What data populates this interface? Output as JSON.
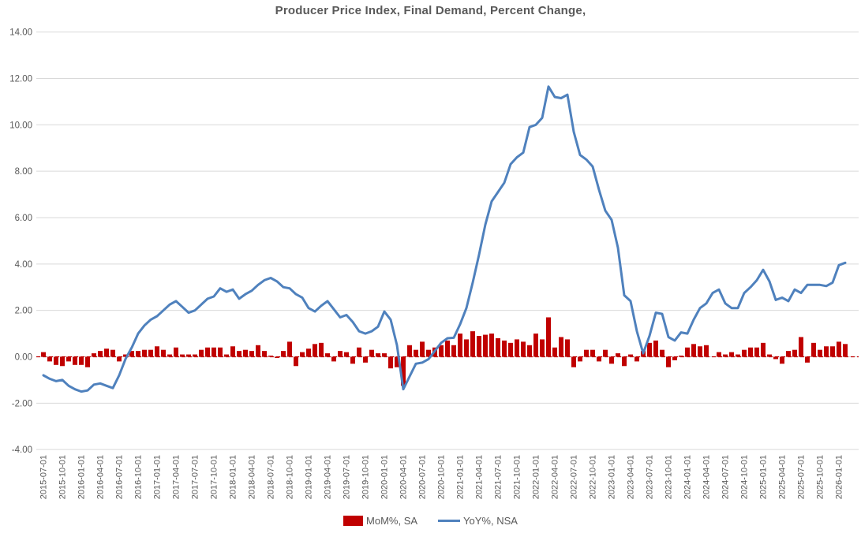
{
  "title": "Producer Price Index, Final Demand, Percent Change,",
  "legend": [
    {
      "label": "MoM%, SA",
      "color": "#C00000",
      "type": "bar"
    },
    {
      "label": "YoY%, NSA",
      "color": "#4F81BD",
      "type": "line"
    }
  ],
  "axes": {
    "y_tick_labels": [
      "14.00",
      "12.00",
      "10.00",
      "8.00",
      "6.00",
      "4.00",
      "2.00",
      "0.00",
      "-2.00",
      "-4.00"
    ],
    "y_min": -4,
    "y_max": 14,
    "grid": true,
    "x_tick_labels": [
      "2015-07-01",
      "2015-10-01",
      "2016-01-01",
      "2016-04-01",
      "2016-07-01",
      "2016-10-01",
      "2017-01-01",
      "2017-04-01",
      "2017-07-01",
      "2017-10-01",
      "2018-01-01",
      "2018-04-01",
      "2018-07-01",
      "2018-10-01",
      "2019-01-01",
      "2019-04-01",
      "2019-07-01",
      "2019-10-01",
      "2020-01-01",
      "2020-04-01",
      "2020-07-01",
      "2020-10-01",
      "2021-01-01",
      "2021-04-01",
      "2021-07-01",
      "2021-10-01",
      "2022-01-01",
      "2022-04-01",
      "2022-07-01",
      "2022-10-01",
      "2023-01-01",
      "2023-04-01",
      "2023-07-01",
      "2023-10-01",
      "2024-01-01",
      "2024-04-01",
      "2024-07-01",
      "2024-10-01",
      "2025-01-01",
      "2025-04-01",
      "2025-07-01",
      "2025-10-01",
      "2026-01-01"
    ]
  },
  "chart_data": {
    "type": "bar+line",
    "x_start": "2015-07",
    "x_freq": "monthly",
    "x_months_per_tick_label": 3,
    "zero_line": {
      "value": 0,
      "color": "#C00000",
      "style": "dashed"
    },
    "series": [
      {
        "name": "MoM%, SA",
        "type": "bar",
        "color": "#C00000",
        "values": [
          0.2,
          -0.2,
          -0.35,
          -0.4,
          -0.2,
          -0.35,
          -0.35,
          -0.45,
          0.15,
          0.25,
          0.35,
          0.3,
          -0.2,
          0.1,
          0.25,
          0.25,
          0.3,
          0.3,
          0.45,
          0.3,
          0.1,
          0.4,
          0.1,
          0.1,
          0.1,
          0.3,
          0.4,
          0.4,
          0.4,
          0.1,
          0.45,
          0.25,
          0.3,
          0.25,
          0.5,
          0.25,
          0.05,
          -0.05,
          0.25,
          0.65,
          -0.4,
          0.2,
          0.35,
          0.55,
          0.6,
          0.15,
          -0.2,
          0.25,
          0.2,
          -0.3,
          0.4,
          -0.25,
          0.3,
          0.15,
          0.15,
          -0.5,
          -0.45,
          -1.25,
          0.5,
          0.3,
          0.65,
          0.3,
          0.4,
          0.5,
          0.7,
          0.5,
          1.0,
          0.75,
          1.1,
          0.9,
          0.95,
          1.0,
          0.8,
          0.7,
          0.6,
          0.75,
          0.65,
          0.5,
          1.0,
          0.75,
          1.7,
          0.4,
          0.85,
          0.75,
          -0.45,
          -0.2,
          0.3,
          0.3,
          -0.2,
          0.3,
          -0.3,
          0.15,
          -0.4,
          0.1,
          -0.2,
          0.25,
          0.6,
          0.7,
          0.3,
          -0.45,
          -0.15,
          0.05,
          0.4,
          0.55,
          0.45,
          0.5,
          0.0,
          0.2,
          0.1,
          0.2,
          0.1,
          0.3,
          0.4,
          0.4,
          0.6,
          0.1,
          -0.1,
          -0.3,
          0.25,
          0.3,
          0.85,
          -0.25,
          0.6,
          0.3,
          0.45,
          0.45,
          0.65,
          0.55
        ]
      },
      {
        "name": "YoY%, NSA",
        "type": "line",
        "color": "#4F81BD",
        "values": [
          -0.8,
          -0.95,
          -1.05,
          -1.0,
          -1.25,
          -1.4,
          -1.5,
          -1.45,
          -1.2,
          -1.15,
          -1.25,
          -1.35,
          -0.8,
          -0.1,
          0.4,
          1.0,
          1.35,
          1.6,
          1.75,
          2.0,
          2.25,
          2.4,
          2.15,
          1.9,
          2.0,
          2.25,
          2.5,
          2.6,
          2.95,
          2.8,
          2.9,
          2.5,
          2.7,
          2.85,
          3.1,
          3.3,
          3.4,
          3.25,
          3.0,
          2.95,
          2.7,
          2.55,
          2.1,
          1.95,
          2.2,
          2.4,
          2.05,
          1.7,
          1.8,
          1.5,
          1.1,
          1.0,
          1.1,
          1.3,
          1.95,
          1.6,
          0.5,
          -1.4,
          -0.85,
          -0.3,
          -0.25,
          -0.1,
          0.25,
          0.6,
          0.8,
          0.82,
          1.4,
          2.1,
          3.2,
          4.4,
          5.7,
          6.7,
          7.1,
          7.5,
          8.3,
          8.6,
          8.8,
          9.9,
          10.0,
          10.3,
          11.65,
          11.2,
          11.15,
          11.3,
          9.7,
          8.7,
          8.5,
          8.2,
          7.2,
          6.3,
          5.9,
          4.7,
          2.65,
          2.4,
          1.1,
          0.15,
          0.9,
          1.9,
          1.85,
          0.85,
          0.7,
          1.05,
          1.0,
          1.6,
          2.1,
          2.3,
          2.75,
          2.9,
          2.3,
          2.1,
          2.1,
          2.75,
          3.0,
          3.3,
          3.75,
          3.25,
          2.45,
          2.55,
          2.4,
          2.9,
          2.75,
          3.1,
          3.1,
          3.1,
          3.05,
          3.2,
          3.95,
          4.05
        ]
      }
    ]
  }
}
